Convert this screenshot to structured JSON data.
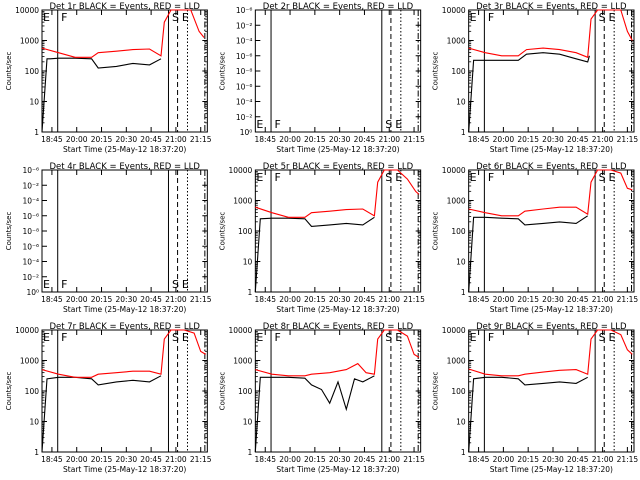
{
  "colors": {
    "events": "#000000",
    "lld": "#ff0000"
  },
  "chart_data": [
    {
      "type": "line",
      "title": "Det 1r BLACK = Events, RED = LLD",
      "scale": "counts",
      "xlabel": "Start Time (25-May-12 18:37:20)",
      "ylabel": "Counts/sec",
      "xticks": [
        "18:45",
        "20:00",
        "20:15",
        "20:30",
        "20:45",
        "21:00",
        "21:15"
      ],
      "yticks": [
        "1",
        "10",
        "100",
        "1000",
        "10000"
      ],
      "markers": [
        "E",
        "F",
        "S",
        "E"
      ],
      "series": [
        {
          "name": "BLACK = Events",
          "values": [
            [
              0,
              0
            ],
            [
              0.03,
              2.4
            ],
            [
              0.05,
              2.4
            ],
            [
              0.1,
              2.42
            ],
            [
              0.2,
              2.42
            ],
            [
              0.3,
              2.4
            ],
            [
              0.34,
              2.1
            ],
            [
              0.45,
              2.15
            ],
            [
              0.55,
              2.25
            ],
            [
              0.65,
              2.2
            ],
            [
              0.72,
              2.4
            ]
          ]
        },
        {
          "name": "RED = LLD",
          "values": [
            [
              0,
              2.75
            ],
            [
              0.1,
              2.6
            ],
            [
              0.2,
              2.45
            ],
            [
              0.3,
              2.45
            ],
            [
              0.34,
              2.6
            ],
            [
              0.45,
              2.65
            ],
            [
              0.55,
              2.7
            ],
            [
              0.65,
              2.72
            ],
            [
              0.72,
              2.5
            ],
            [
              0.74,
              3.6
            ],
            [
              0.78,
              4.1
            ],
            [
              0.84,
              4.15
            ],
            [
              0.9,
              4.05
            ],
            [
              0.95,
              3.3
            ],
            [
              0.98,
              3.1
            ]
          ]
        }
      ]
    },
    {
      "type": "line",
      "title": "Det 2r BLACK = Events, RED = LLD",
      "scale": "tiny",
      "xlabel": "Start Time (25-May-12 18:37:20)",
      "ylabel": "Counts/sec",
      "xticks": [
        "18:45",
        "20:00",
        "20:15",
        "20:30",
        "20:45",
        "21:00",
        "21:15"
      ],
      "yticks": [
        "10⁰",
        "10⁻²",
        "10⁻⁴",
        "10⁻⁶",
        "10⁻⁸",
        "10⁻⁶",
        "10⁻⁴",
        "10⁻²",
        "10⁻⁶"
      ],
      "markers": [
        "E",
        "F",
        "S",
        "E"
      ],
      "series": []
    },
    {
      "type": "line",
      "title": "Det 3r BLACK = Events, RED = LLD",
      "scale": "counts",
      "xlabel": "Start Time (25-May-12 18:37:20)",
      "ylabel": "Counts/sec",
      "xticks": [
        "18:45",
        "20:00",
        "20:15",
        "20:30",
        "20:45",
        "21:00",
        "21:15"
      ],
      "yticks": [
        "1",
        "10",
        "100",
        "1000",
        "10000"
      ],
      "markers": [
        "E",
        "F",
        "S",
        "E"
      ],
      "series": [
        {
          "name": "BLACK = Events",
          "values": [
            [
              0,
              0
            ],
            [
              0.03,
              2.35
            ],
            [
              0.1,
              2.35
            ],
            [
              0.2,
              2.35
            ],
            [
              0.3,
              2.35
            ],
            [
              0.35,
              2.55
            ],
            [
              0.45,
              2.6
            ],
            [
              0.55,
              2.55
            ],
            [
              0.65,
              2.4
            ],
            [
              0.72,
              2.3
            ],
            [
              0.73,
              2.5
            ]
          ]
        },
        {
          "name": "RED = LLD",
          "values": [
            [
              0,
              2.75
            ],
            [
              0.1,
              2.6
            ],
            [
              0.2,
              2.5
            ],
            [
              0.3,
              2.5
            ],
            [
              0.35,
              2.7
            ],
            [
              0.45,
              2.75
            ],
            [
              0.55,
              2.7
            ],
            [
              0.65,
              2.6
            ],
            [
              0.72,
              2.45
            ],
            [
              0.74,
              3.7
            ],
            [
              0.78,
              4.1
            ],
            [
              0.85,
              4.1
            ],
            [
              0.92,
              4.05
            ],
            [
              0.96,
              3.3
            ],
            [
              0.99,
              3.0
            ]
          ]
        }
      ]
    },
    {
      "type": "line",
      "title": "Det 4r BLACK = Events, RED = LLD",
      "scale": "tiny",
      "xlabel": "Start Time (25-May-12 18:37:20)",
      "ylabel": "Counts/sec",
      "xticks": [
        "18:45",
        "20:00",
        "20:15",
        "20:30",
        "20:45",
        "21:00",
        "21:15"
      ],
      "yticks": [
        "10⁰",
        "10⁻²",
        "10⁻⁴",
        "10⁻⁶",
        "10⁻⁸",
        "10⁻⁶",
        "10⁻⁴",
        "10⁻²",
        "10⁻⁶"
      ],
      "markers": [
        "E",
        "F",
        "S",
        "E"
      ],
      "series": []
    },
    {
      "type": "line",
      "title": "Det 5r BLACK = Events, RED = LLD",
      "scale": "counts",
      "xlabel": "Start Time (25-May-12 18:37:20)",
      "ylabel": "Counts/sec",
      "xticks": [
        "18:45",
        "20:00",
        "20:15",
        "20:30",
        "20:45",
        "21:00",
        "21:15"
      ],
      "yticks": [
        "1",
        "10",
        "100",
        "1000",
        "10000"
      ],
      "markers": [
        "E",
        "F",
        "S",
        "E"
      ],
      "series": [
        {
          "name": "BLACK = Events",
          "values": [
            [
              0,
              0
            ],
            [
              0.03,
              2.4
            ],
            [
              0.1,
              2.42
            ],
            [
              0.2,
              2.42
            ],
            [
              0.3,
              2.4
            ],
            [
              0.34,
              2.15
            ],
            [
              0.45,
              2.2
            ],
            [
              0.55,
              2.25
            ],
            [
              0.65,
              2.2
            ],
            [
              0.72,
              2.45
            ]
          ]
        },
        {
          "name": "RED = LLD",
          "values": [
            [
              0,
              2.78
            ],
            [
              0.1,
              2.6
            ],
            [
              0.2,
              2.45
            ],
            [
              0.3,
              2.45
            ],
            [
              0.34,
              2.6
            ],
            [
              0.45,
              2.65
            ],
            [
              0.55,
              2.7
            ],
            [
              0.65,
              2.72
            ],
            [
              0.72,
              2.5
            ],
            [
              0.74,
              3.6
            ],
            [
              0.78,
              4.1
            ],
            [
              0.86,
              4.1
            ],
            [
              0.92,
              3.7
            ],
            [
              0.97,
              3.3
            ],
            [
              0.99,
              3.2
            ]
          ]
        }
      ]
    },
    {
      "type": "line",
      "title": "Det 6r BLACK = Events, RED = LLD",
      "scale": "counts",
      "xlabel": "Start Time (25-May-12 18:37:20)",
      "ylabel": "Counts/sec",
      "xticks": [
        "18:45",
        "20:00",
        "20:15",
        "20:30",
        "20:45",
        "21:00",
        "21:15"
      ],
      "yticks": [
        "1",
        "10",
        "100",
        "1000",
        "10000"
      ],
      "markers": [
        "E",
        "F",
        "S",
        "E"
      ],
      "series": [
        {
          "name": "BLACK = Events",
          "values": [
            [
              0,
              0
            ],
            [
              0.03,
              2.45
            ],
            [
              0.1,
              2.45
            ],
            [
              0.2,
              2.42
            ],
            [
              0.3,
              2.4
            ],
            [
              0.34,
              2.2
            ],
            [
              0.45,
              2.25
            ],
            [
              0.55,
              2.3
            ],
            [
              0.65,
              2.25
            ],
            [
              0.72,
              2.5
            ]
          ]
        },
        {
          "name": "RED = LLD",
          "values": [
            [
              0,
              2.72
            ],
            [
              0.1,
              2.6
            ],
            [
              0.2,
              2.5
            ],
            [
              0.3,
              2.5
            ],
            [
              0.34,
              2.65
            ],
            [
              0.45,
              2.72
            ],
            [
              0.55,
              2.78
            ],
            [
              0.65,
              2.78
            ],
            [
              0.72,
              2.55
            ],
            [
              0.74,
              3.6
            ],
            [
              0.78,
              4.05
            ],
            [
              0.86,
              4.05
            ],
            [
              0.92,
              3.9
            ],
            [
              0.96,
              3.4
            ],
            [
              0.99,
              3.35
            ]
          ]
        }
      ]
    },
    {
      "type": "line",
      "title": "Det 7r BLACK = Events, RED = LLD",
      "scale": "counts",
      "xlabel": "Start Time (25-May-12 18:37:20)",
      "ylabel": "Counts/sec",
      "xticks": [
        "18:45",
        "20:00",
        "20:15",
        "20:30",
        "20:45",
        "21:00",
        "21:15"
      ],
      "yticks": [
        "1",
        "10",
        "100",
        "1000",
        "10000"
      ],
      "markers": [
        "E",
        "F",
        "S",
        "E"
      ],
      "series": [
        {
          "name": "BLACK = Events",
          "values": [
            [
              0,
              0
            ],
            [
              0.03,
              2.4
            ],
            [
              0.1,
              2.45
            ],
            [
              0.2,
              2.45
            ],
            [
              0.3,
              2.4
            ],
            [
              0.34,
              2.2
            ],
            [
              0.45,
              2.3
            ],
            [
              0.55,
              2.35
            ],
            [
              0.65,
              2.3
            ],
            [
              0.72,
              2.5
            ]
          ]
        },
        {
          "name": "RED = LLD",
          "values": [
            [
              0,
              2.7
            ],
            [
              0.1,
              2.55
            ],
            [
              0.2,
              2.45
            ],
            [
              0.3,
              2.45
            ],
            [
              0.34,
              2.55
            ],
            [
              0.45,
              2.6
            ],
            [
              0.55,
              2.65
            ],
            [
              0.65,
              2.65
            ],
            [
              0.72,
              2.55
            ],
            [
              0.74,
              3.7
            ],
            [
              0.78,
              4.0
            ],
            [
              0.86,
              4.05
            ],
            [
              0.92,
              3.9
            ],
            [
              0.96,
              3.3
            ],
            [
              0.99,
              3.2
            ]
          ]
        }
      ]
    },
    {
      "type": "line",
      "title": "Det 8r BLACK = Events, RED = LLD",
      "scale": "counts",
      "xlabel": "Start Time (25-May-12 18:37:20)",
      "ylabel": "Counts/sec",
      "xticks": [
        "18:45",
        "20:00",
        "20:15",
        "20:30",
        "20:45",
        "21:00",
        "21:15"
      ],
      "yticks": [
        "1",
        "10",
        "100",
        "1000",
        "10000"
      ],
      "markers": [
        "E",
        "F",
        "S",
        "E"
      ],
      "series": [
        {
          "name": "BLACK = Events",
          "values": [
            [
              0,
              0
            ],
            [
              0.03,
              2.45
            ],
            [
              0.1,
              2.45
            ],
            [
              0.2,
              2.45
            ],
            [
              0.3,
              2.42
            ],
            [
              0.34,
              2.2
            ],
            [
              0.4,
              2.05
            ],
            [
              0.45,
              1.6
            ],
            [
              0.5,
              2.3
            ],
            [
              0.55,
              1.4
            ],
            [
              0.6,
              2.4
            ],
            [
              0.65,
              2.3
            ],
            [
              0.72,
              2.5
            ]
          ]
        },
        {
          "name": "RED = LLD",
          "values": [
            [
              0,
              2.7
            ],
            [
              0.1,
              2.55
            ],
            [
              0.2,
              2.5
            ],
            [
              0.3,
              2.5
            ],
            [
              0.34,
              2.55
            ],
            [
              0.45,
              2.6
            ],
            [
              0.55,
              2.7
            ],
            [
              0.62,
              2.9
            ],
            [
              0.67,
              2.6
            ],
            [
              0.72,
              2.55
            ],
            [
              0.74,
              3.7
            ],
            [
              0.78,
              4.0
            ],
            [
              0.86,
              4.05
            ],
            [
              0.92,
              3.8
            ],
            [
              0.96,
              3.2
            ],
            [
              0.99,
              3.1
            ]
          ]
        }
      ]
    },
    {
      "type": "line",
      "title": "Det 9r BLACK = Events, RED = LLD",
      "scale": "counts",
      "xlabel": "Start Time (25-May-12 18:37:20)",
      "ylabel": "Counts/sec",
      "xticks": [
        "18:45",
        "20:00",
        "20:15",
        "20:30",
        "20:45",
        "21:00",
        "21:15"
      ],
      "yticks": [
        "1",
        "10",
        "100",
        "1000",
        "10000"
      ],
      "markers": [
        "E",
        "F",
        "S",
        "E"
      ],
      "series": [
        {
          "name": "BLACK = Events",
          "values": [
            [
              0,
              0
            ],
            [
              0.03,
              2.4
            ],
            [
              0.1,
              2.45
            ],
            [
              0.2,
              2.45
            ],
            [
              0.3,
              2.4
            ],
            [
              0.34,
              2.2
            ],
            [
              0.45,
              2.25
            ],
            [
              0.55,
              2.3
            ],
            [
              0.65,
              2.25
            ],
            [
              0.72,
              2.45
            ]
          ]
        },
        {
          "name": "RED = LLD",
          "values": [
            [
              0,
              2.72
            ],
            [
              0.1,
              2.55
            ],
            [
              0.2,
              2.5
            ],
            [
              0.3,
              2.5
            ],
            [
              0.34,
              2.55
            ],
            [
              0.45,
              2.62
            ],
            [
              0.55,
              2.68
            ],
            [
              0.65,
              2.7
            ],
            [
              0.72,
              2.55
            ],
            [
              0.74,
              3.7
            ],
            [
              0.78,
              4.0
            ],
            [
              0.86,
              4.05
            ],
            [
              0.92,
              3.85
            ],
            [
              0.96,
              3.35
            ],
            [
              0.99,
              3.2
            ]
          ]
        }
      ]
    }
  ]
}
